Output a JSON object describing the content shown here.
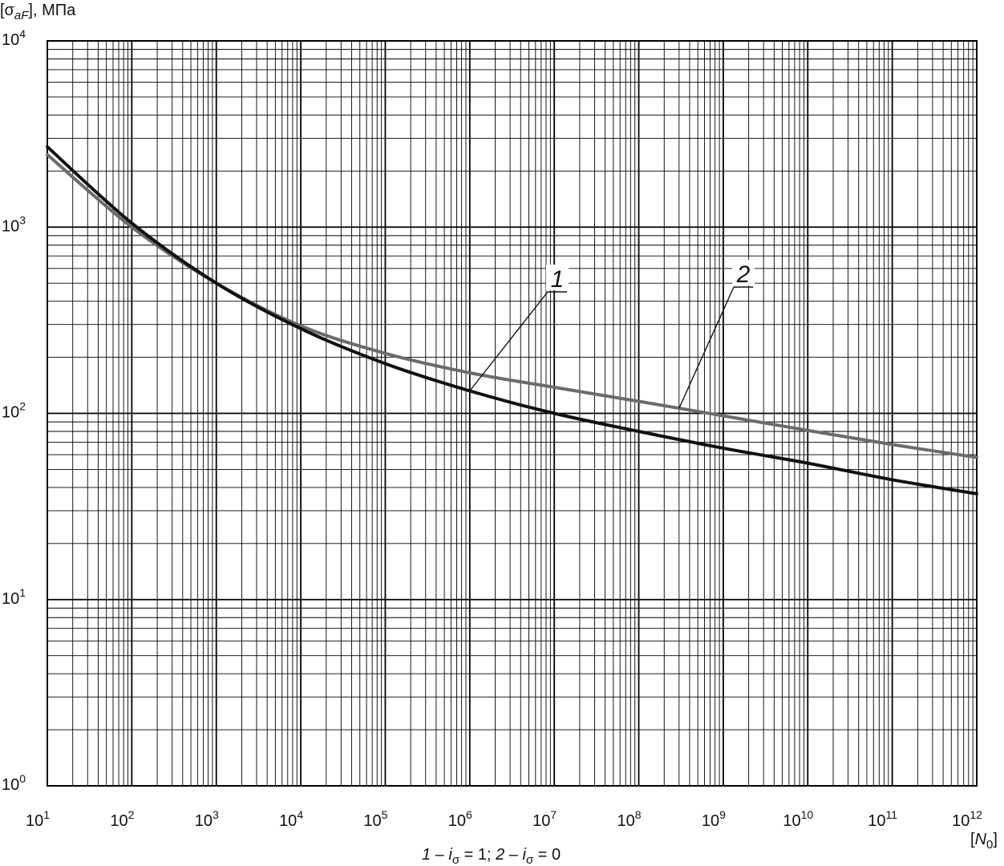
{
  "chart_data": {
    "type": "line",
    "x_scale": "log",
    "y_scale": "log",
    "xlim": [
      10,
      1000000000000
    ],
    "ylim": [
      1,
      10000
    ],
    "grid": true,
    "y_axis_label": {
      "open": "[σ",
      "sub": "aF",
      "close": "], МПа"
    },
    "x_axis_label": {
      "open": "[",
      "italic": "N",
      "sub": "0",
      "close": "]"
    },
    "x_ticks": [
      {
        "base": "10",
        "exp": "1"
      },
      {
        "base": "10",
        "exp": "2"
      },
      {
        "base": "10",
        "exp": "3"
      },
      {
        "base": "10",
        "exp": "4"
      },
      {
        "base": "10",
        "exp": "5"
      },
      {
        "base": "10",
        "exp": "6"
      },
      {
        "base": "10",
        "exp": "7"
      },
      {
        "base": "10",
        "exp": "8"
      },
      {
        "base": "10",
        "exp": "9"
      },
      {
        "base": "10",
        "exp": "10"
      },
      {
        "base": "10",
        "exp": "11"
      },
      {
        "base": "10",
        "exp": "12"
      }
    ],
    "y_ticks": [
      {
        "base": "10",
        "exp": "0"
      },
      {
        "base": "10",
        "exp": "1"
      },
      {
        "base": "10",
        "exp": "2"
      },
      {
        "base": "10",
        "exp": "3"
      },
      {
        "base": "10",
        "exp": "4"
      }
    ],
    "series": [
      {
        "label": "1",
        "color": "#111111",
        "x": [
          10,
          100,
          1000,
          10000,
          100000,
          1000000,
          10000000,
          100000000,
          1000000000,
          10000000000,
          100000000000,
          1000000000000
        ],
        "y": [
          2700,
          1050,
          500,
          285,
          185,
          132,
          100,
          80,
          65,
          54,
          44,
          37
        ]
      },
      {
        "label": "2",
        "color": "#6b6b6b",
        "x": [
          10,
          100,
          1000,
          10000,
          100000,
          1000000,
          10000000,
          100000000,
          1000000000,
          10000000000,
          100000000000,
          1000000000000
        ],
        "y": [
          2450,
          1000,
          500,
          295,
          210,
          165,
          138,
          116,
          97,
          81,
          68,
          58
        ]
      }
    ],
    "callouts": [
      {
        "series": "1",
        "text": "1"
      },
      {
        "series": "2",
        "text": "2"
      }
    ],
    "caption": {
      "p1": "1",
      "p2": " – ",
      "p3": "i",
      "p4": "σ",
      "p5": " = 1; ",
      "p6": "2",
      "p7": " – ",
      "p8": "i",
      "p9": "σ",
      "p10": " = 0"
    }
  }
}
